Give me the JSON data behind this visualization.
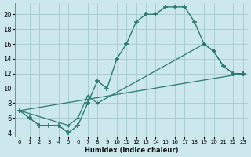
{
  "xlabel": "Humidex (Indice chaleur)",
  "background_color": "#cce8ec",
  "grid_color": "#aacdd4",
  "line_color": "#2a7a6a",
  "xlim": [
    -0.5,
    23.5
  ],
  "ylim": [
    3.5,
    21.5
  ],
  "xticks": [
    0,
    1,
    2,
    3,
    4,
    5,
    6,
    7,
    8,
    9,
    10,
    11,
    12,
    13,
    14,
    15,
    16,
    17,
    18,
    19,
    20,
    21,
    22,
    23
  ],
  "yticks": [
    4,
    6,
    8,
    10,
    12,
    14,
    16,
    18,
    20
  ],
  "line1_x": [
    0,
    1,
    2,
    3,
    4,
    5,
    6,
    7,
    8,
    9,
    10,
    11,
    12,
    13,
    14,
    15,
    16,
    17,
    18,
    19,
    20,
    21,
    22,
    23
  ],
  "line1_y": [
    7,
    6,
    5,
    5,
    5,
    4,
    5,
    8,
    11,
    10,
    14,
    16,
    19,
    20,
    20,
    21,
    21,
    21,
    19,
    16,
    15,
    13,
    12,
    12
  ],
  "line2_x": [
    0,
    5,
    6,
    7,
    8,
    19,
    20,
    21,
    22,
    23
  ],
  "line2_y": [
    7,
    5,
    6,
    9,
    8,
    16,
    15,
    13,
    12,
    12
  ],
  "line3_x": [
    0,
    23
  ],
  "line3_y": [
    7,
    12
  ]
}
